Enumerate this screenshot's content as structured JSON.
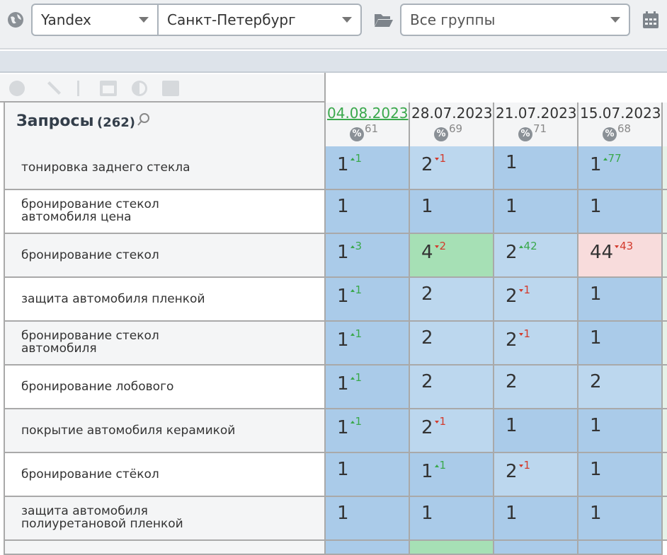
{
  "toolbar": {
    "engine": "Yandex",
    "region": "Санкт-Петербург",
    "group": "Все группы"
  },
  "table": {
    "header": {
      "title": "Запросы",
      "count": "(262)"
    },
    "dates": [
      {
        "date": "04.08.2023",
        "percent": 61,
        "current": true
      },
      {
        "date": "28.07.2023",
        "percent": 69
      },
      {
        "date": "21.07.2023",
        "percent": 71
      },
      {
        "date": "15.07.2023",
        "percent": 68
      }
    ],
    "rows": [
      {
        "query": [
          "тонировка заднего стекла"
        ],
        "cells": [
          {
            "position": 1,
            "change": {
              "value": 1,
              "trend": "up"
            }
          },
          {
            "position": 2,
            "change": {
              "value": 1,
              "trend": "down"
            }
          },
          {
            "position": 1
          },
          {
            "position": 1,
            "change": {
              "value": 77,
              "trend": "up"
            }
          }
        ]
      },
      {
        "query": [
          "бронирование стекол",
          "автомобиля цена"
        ],
        "cells": [
          {
            "position": 1
          },
          {
            "position": 1
          },
          {
            "position": 1
          },
          {
            "position": 1
          }
        ]
      },
      {
        "query": [
          "бронирование стекол"
        ],
        "cells": [
          {
            "position": 1,
            "change": {
              "value": 3,
              "trend": "up"
            }
          },
          {
            "position": 4,
            "change": {
              "value": 2,
              "trend": "down"
            }
          },
          {
            "position": 2,
            "change": {
              "value": 42,
              "trend": "up"
            }
          },
          {
            "position": 44,
            "change": {
              "value": 43,
              "trend": "down"
            }
          }
        ]
      },
      {
        "query": [
          "защита автомобиля пленкой"
        ],
        "cells": [
          {
            "position": 1,
            "change": {
              "value": 1,
              "trend": "up"
            }
          },
          {
            "position": 2
          },
          {
            "position": 2,
            "change": {
              "value": 1,
              "trend": "down"
            }
          },
          {
            "position": 1
          }
        ]
      },
      {
        "query": [
          "бронирование стекол",
          "автомобиля"
        ],
        "cells": [
          {
            "position": 1,
            "change": {
              "value": 1,
              "trend": "up"
            }
          },
          {
            "position": 2
          },
          {
            "position": 2,
            "change": {
              "value": 1,
              "trend": "down"
            }
          },
          {
            "position": 1
          }
        ]
      },
      {
        "query": [
          "бронирование лобового"
        ],
        "cells": [
          {
            "position": 1,
            "change": {
              "value": 1,
              "trend": "up"
            }
          },
          {
            "position": 2
          },
          {
            "position": 2
          },
          {
            "position": 2
          }
        ]
      },
      {
        "query": [
          "покрытие автомобиля керамикой"
        ],
        "cells": [
          {
            "position": 1,
            "change": {
              "value": 1,
              "trend": "up"
            }
          },
          {
            "position": 2,
            "change": {
              "value": 1,
              "trend": "down"
            }
          },
          {
            "position": 1
          },
          {
            "position": 1
          }
        ]
      },
      {
        "query": [
          "бронирование стёкол"
        ],
        "cells": [
          {
            "position": 1
          },
          {
            "position": 1,
            "change": {
              "value": 1,
              "trend": "up"
            }
          },
          {
            "position": 2,
            "change": {
              "value": 1,
              "trend": "down"
            }
          },
          {
            "position": 1
          }
        ]
      },
      {
        "query": [
          "защита автомобиля",
          "полиуретановой пленкой"
        ],
        "cells": [
          {
            "position": 1
          },
          {
            "position": 1
          },
          {
            "position": 1
          },
          {
            "position": 1
          }
        ]
      }
    ]
  }
}
